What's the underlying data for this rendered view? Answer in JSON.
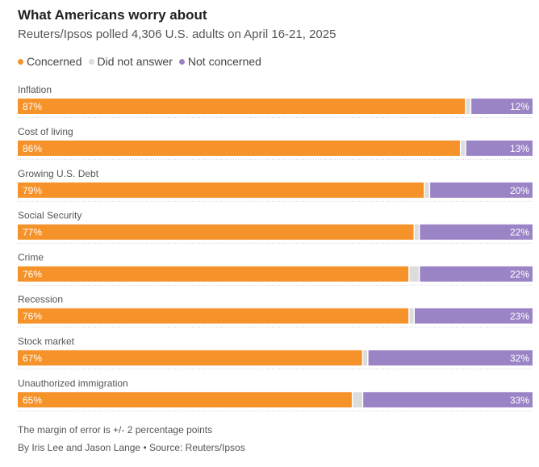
{
  "chart_data": {
    "type": "bar",
    "orientation": "horizontal",
    "stacked": true,
    "title": "What Americans worry about",
    "subtitle": "Reuters/Ipsos polled 4,306 U.S. adults on April 16-21, 2025",
    "categories": [
      "Inflation",
      "Cost of living",
      "Growing U.S. Debt",
      "Social Security",
      "Crime",
      "Recession",
      "Stock market",
      "Unauthorized immigration"
    ],
    "series": [
      {
        "name": "Concerned",
        "color": "#f5922a",
        "values": [
          87,
          86,
          79,
          77,
          76,
          76,
          67,
          65
        ]
      },
      {
        "name": "Did not answer",
        "color": "#dcdcdc",
        "values": [
          1,
          1,
          1,
          1,
          2,
          1,
          1,
          2
        ]
      },
      {
        "name": "Not concerned",
        "color": "#9b84c6",
        "values": [
          12,
          13,
          20,
          22,
          22,
          23,
          32,
          33
        ]
      }
    ],
    "labels": {
      "Concerned": [
        "87%",
        "86%",
        "79%",
        "77%",
        "76%",
        "76%",
        "67%",
        "65%"
      ],
      "Not concerned": [
        "12%",
        "13%",
        "20%",
        "22%",
        "22%",
        "23%",
        "32%",
        "33%"
      ]
    },
    "xlim": [
      0,
      100
    ],
    "legend_position": "top-left"
  },
  "footnote": "The margin of error is +/- 2 percentage points",
  "credit": "By Iris Lee and Jason Lange • Source: Reuters/Ipsos"
}
